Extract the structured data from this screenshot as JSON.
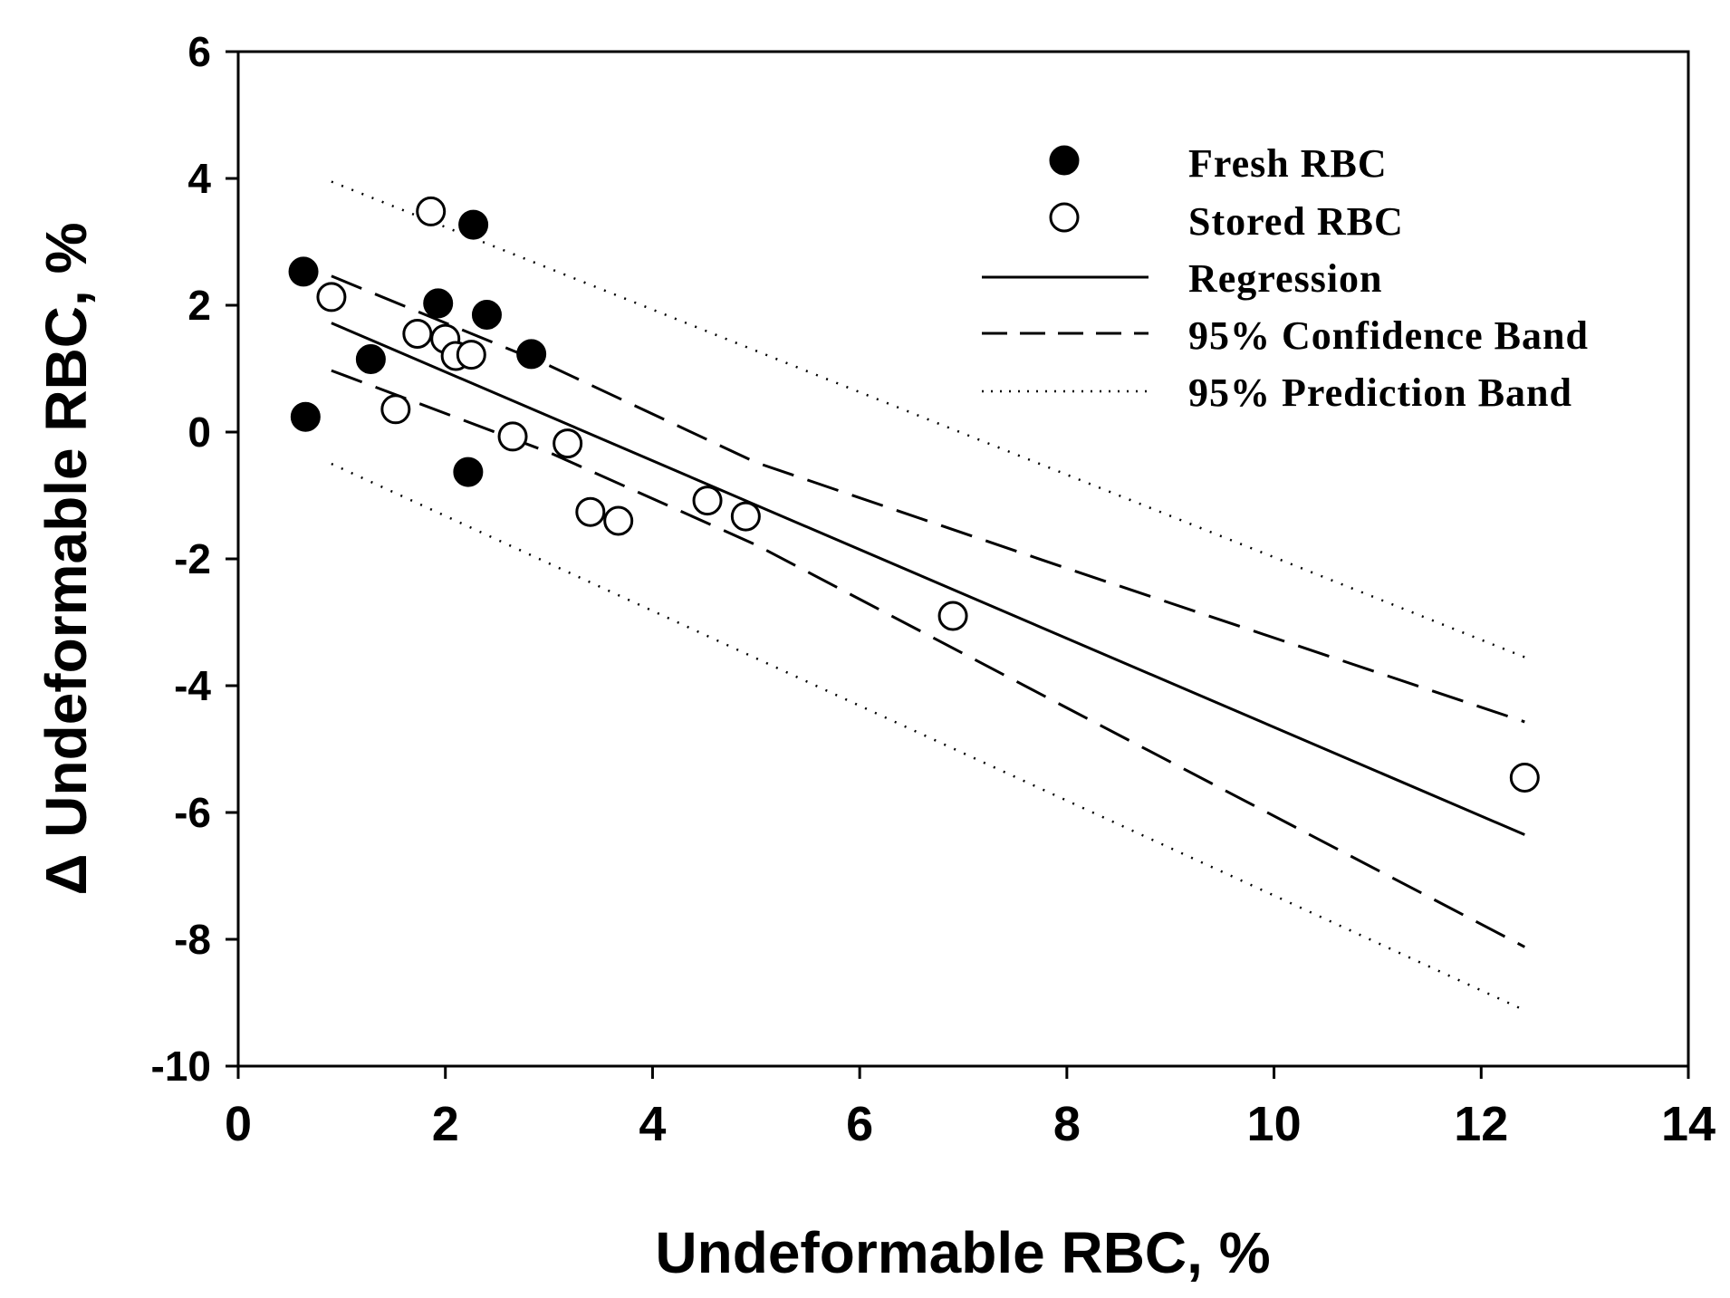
{
  "chart_data": {
    "type": "scatter",
    "xlabel": "Undeformable RBC, %",
    "ylabel": "Δ Undeformable RBC, %",
    "xlim": [
      0,
      14
    ],
    "ylim": [
      -10,
      6
    ],
    "xticks": [
      0,
      2,
      4,
      6,
      8,
      10,
      12,
      14
    ],
    "yticks": [
      -10,
      -8,
      -6,
      -4,
      -2,
      0,
      2,
      4,
      6
    ],
    "grid": false,
    "legend_position": "top-right",
    "series": [
      {
        "name": "Fresh RBC",
        "marker": "filled-circle",
        "points": [
          [
            0.63,
            2.53
          ],
          [
            0.65,
            0.24
          ],
          [
            1.28,
            1.15
          ],
          [
            1.93,
            2.03
          ],
          [
            2.27,
            3.27
          ],
          [
            2.4,
            1.85
          ],
          [
            2.83,
            1.23
          ],
          [
            2.22,
            -0.63
          ]
        ]
      },
      {
        "name": "Stored RBC",
        "marker": "open-circle",
        "points": [
          [
            0.9,
            2.13
          ],
          [
            1.73,
            1.55
          ],
          [
            1.86,
            3.48
          ],
          [
            2.0,
            1.47
          ],
          [
            2.1,
            1.2
          ],
          [
            2.25,
            1.22
          ],
          [
            1.52,
            0.36
          ],
          [
            2.65,
            -0.07
          ],
          [
            3.18,
            -0.18
          ],
          [
            3.4,
            -1.26
          ],
          [
            3.67,
            -1.4
          ],
          [
            4.53,
            -1.08
          ],
          [
            4.9,
            -1.33
          ],
          [
            6.9,
            -2.9
          ],
          [
            12.42,
            -5.45
          ]
        ]
      },
      {
        "name": "Regression",
        "style": "solid",
        "points": [
          [
            0.9,
            1.72
          ],
          [
            12.42,
            -6.35
          ]
        ]
      },
      {
        "name": "95% Confidence Band",
        "style": "dashed",
        "upper": [
          [
            0.9,
            2.46
          ],
          [
            3.0,
            1.05
          ],
          [
            5.0,
            -0.48
          ],
          [
            8.0,
            -2.15
          ],
          [
            12.42,
            -4.57
          ]
        ],
        "lower": [
          [
            0.9,
            0.97
          ],
          [
            3.0,
            -0.32
          ],
          [
            5.0,
            -1.78
          ],
          [
            8.0,
            -4.35
          ],
          [
            12.42,
            -8.12
          ]
        ]
      },
      {
        "name": "95% Prediction Band",
        "style": "dotted",
        "upper": [
          [
            0.9,
            3.95
          ],
          [
            12.42,
            -3.55
          ]
        ],
        "lower": [
          [
            0.9,
            -0.5
          ],
          [
            12.42,
            -9.12
          ]
        ]
      }
    ]
  }
}
